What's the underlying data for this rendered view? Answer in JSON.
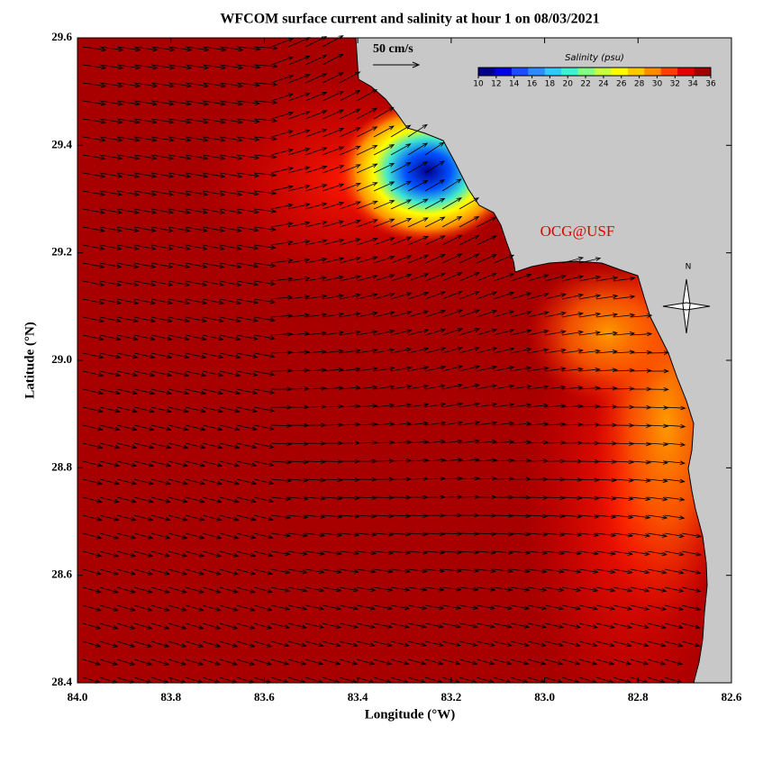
{
  "chart_data": {
    "type": "map",
    "title": "WFCOM surface current and salinity at hour 1 on 08/03/2021",
    "xlabel": "Longitude (°W)",
    "ylabel": "Latitude (°N)",
    "xlim": [
      84.0,
      82.6
    ],
    "xticks": [
      {
        "value": 84.0,
        "label": "84.0"
      },
      83.8,
      83.6,
      83.4,
      83.2,
      {
        "value": 83.0,
        "label": "83.0"
      },
      82.8,
      82.6
    ],
    "ylim": [
      28.4,
      29.6
    ],
    "yticks": [
      28.4,
      28.6,
      28.8,
      {
        "value": 29.0,
        "label": "29.0"
      },
      29.2,
      29.4,
      29.6
    ],
    "scale_label": "50 cm/s",
    "credit": "OCG@USF",
    "north": "N",
    "colorbar": {
      "title": "Salinity (psu)",
      "lim": [
        10,
        36
      ],
      "ticks": [
        10,
        12,
        14,
        16,
        18,
        20,
        22,
        24,
        26,
        28,
        30,
        32,
        34,
        36
      ],
      "colors": [
        "#00008c",
        "#0000e0",
        "#1a4dff",
        "#2a8cff",
        "#30c8ff",
        "#40f0d0",
        "#80ff80",
        "#c8ff40",
        "#ffff00",
        "#ffc800",
        "#ff8c00",
        "#ff4000",
        "#e00000",
        "#a00000"
      ]
    }
  }
}
